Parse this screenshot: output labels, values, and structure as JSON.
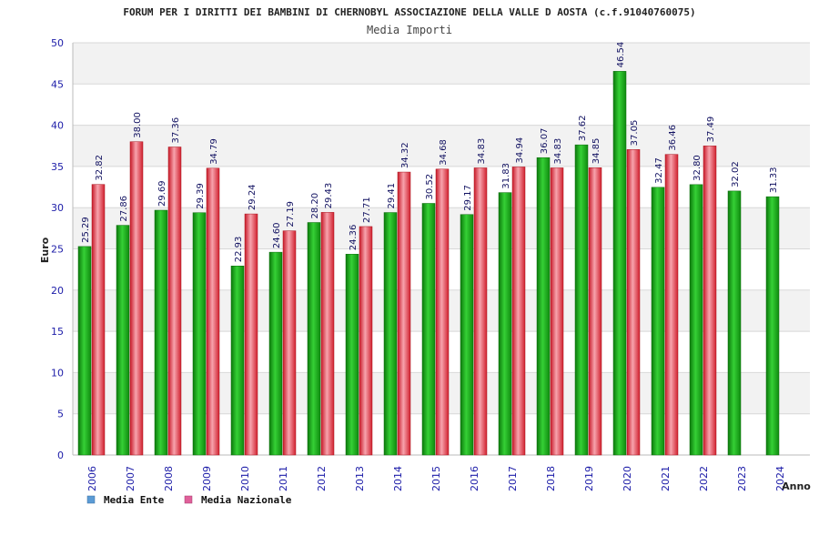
{
  "chart_data": {
    "type": "bar",
    "title": "FORUM PER I DIRITTI DEI BAMBINI DI CHERNOBYL ASSOCIAZIONE DELLA VALLE D AOSTA (c.f.91040760075)",
    "subtitle": "Media Importi",
    "xlabel": "Anno",
    "ylabel": "Euro",
    "ylim": [
      0,
      50
    ],
    "yticks": [
      0,
      5,
      10,
      15,
      20,
      25,
      30,
      35,
      40,
      45,
      50
    ],
    "grid": true,
    "legend_position": "bottom-left",
    "categories": [
      "2006",
      "2007",
      "2008",
      "2009",
      "2010",
      "2011",
      "2012",
      "2013",
      "2014",
      "2015",
      "2016",
      "2017",
      "2018",
      "2019",
      "2020",
      "2021",
      "2022",
      "2023",
      "2024"
    ],
    "series": [
      {
        "name": "Media Ente",
        "values": [
          25.29,
          27.86,
          29.69,
          29.39,
          22.93,
          24.6,
          28.2,
          24.36,
          29.41,
          30.52,
          29.17,
          31.83,
          36.07,
          37.62,
          46.54,
          32.47,
          32.8,
          32.02,
          31.33
        ],
        "labels": [
          "25.29",
          "27.86",
          "29.69",
          "29.39",
          "22.93",
          "24.60",
          "28.20",
          "24.36",
          "29.41",
          "30.52",
          "29.17",
          "31.83",
          "36.07",
          "37.62",
          "46.54",
          "32.47",
          "32.80",
          "32.02",
          "31.33"
        ]
      },
      {
        "name": "Media Nazionale",
        "values": [
          32.82,
          38.0,
          37.36,
          34.79,
          29.24,
          27.19,
          29.43,
          27.71,
          34.32,
          34.68,
          34.83,
          34.94,
          34.83,
          34.85,
          37.05,
          36.46,
          37.49,
          null,
          null
        ],
        "labels": [
          "32.82",
          "38.00",
          "37.36",
          "34.79",
          "29.24",
          "27.19",
          "29.43",
          "27.71",
          "34.32",
          "34.68",
          "34.83",
          "34.94",
          "34.83",
          "34.85",
          "37.05",
          "36.46",
          "37.49",
          "",
          ""
        ]
      }
    ],
    "colors": {
      "ente_bar": "#1fa81f",
      "nazionale_bar": "#e8313f",
      "legend_ente": "#5b9bd5",
      "legend_nazionale": "#e0609a",
      "axis_text": "#1c1ca8",
      "label_text": "#101060",
      "grid_band": "#f2f2f2"
    }
  }
}
